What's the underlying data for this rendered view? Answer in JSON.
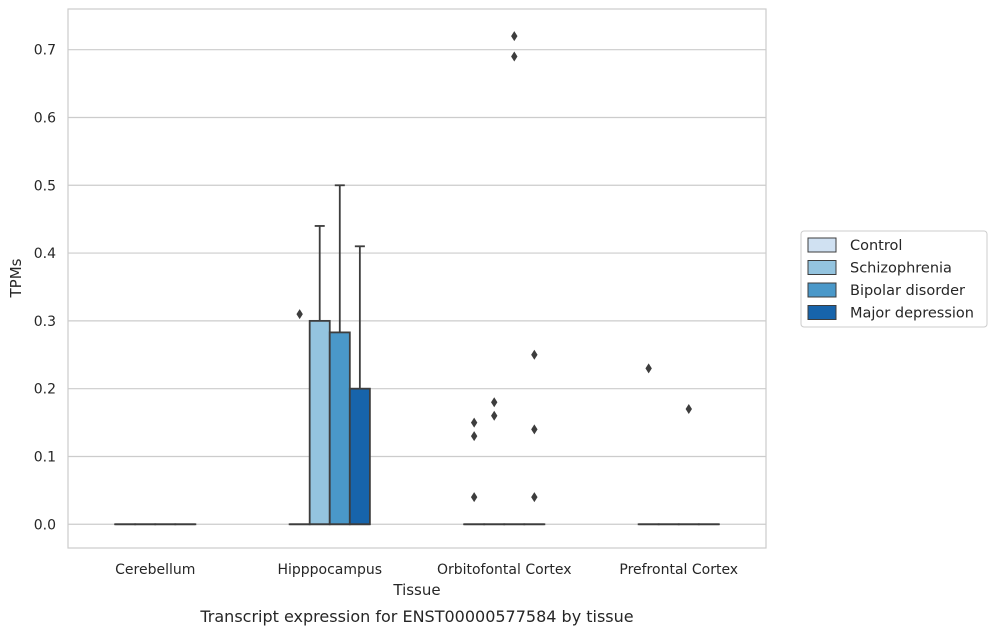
{
  "chart_data": {
    "type": "box",
    "caption": "Transcript expression for ENST00000577584 by tissue",
    "xlabel": "Tissue",
    "ylabel": "TPMs",
    "categories": [
      "Cerebellum",
      "Hipppocampus",
      "Orbitofontal Cortex",
      "Prefrontal Cortex"
    ],
    "ylim": [
      -0.035,
      0.76
    ],
    "yticks": [
      0.0,
      0.1,
      0.2,
      0.3,
      0.4,
      0.5,
      0.6,
      0.7
    ],
    "ytick_labels": [
      "0.0",
      "0.1",
      "0.2",
      "0.3",
      "0.4",
      "0.5",
      "0.6",
      "0.7"
    ],
    "grid": "horizontal",
    "legend_position": "right",
    "series": [
      {
        "name": "Control",
        "color": "#d0e1f2",
        "boxes": [
          {
            "q1": 0,
            "median": 0,
            "q3": 0,
            "whisker_low": 0,
            "whisker_high": 0,
            "outliers": []
          },
          {
            "q1": 0,
            "median": 0,
            "q3": 0,
            "whisker_low": 0,
            "whisker_high": 0,
            "outliers": [
              0.31
            ]
          },
          {
            "q1": 0,
            "median": 0,
            "q3": 0,
            "whisker_low": 0,
            "whisker_high": 0,
            "outliers": [
              0.04,
              0.13,
              0.15
            ]
          },
          {
            "q1": 0,
            "median": 0,
            "q3": 0,
            "whisker_low": 0,
            "whisker_high": 0,
            "outliers": [
              0.23
            ]
          }
        ]
      },
      {
        "name": "Schizophrenia",
        "color": "#94c4df",
        "boxes": [
          {
            "q1": 0,
            "median": 0,
            "q3": 0,
            "whisker_low": 0,
            "whisker_high": 0,
            "outliers": []
          },
          {
            "q1": 0,
            "median": 0,
            "q3": 0.3,
            "whisker_low": 0,
            "whisker_high": 0.44,
            "outliers": []
          },
          {
            "q1": 0,
            "median": 0,
            "q3": 0,
            "whisker_low": 0,
            "whisker_high": 0,
            "outliers": [
              0.16,
              0.18
            ]
          },
          {
            "q1": 0,
            "median": 0,
            "q3": 0,
            "whisker_low": 0,
            "whisker_high": 0,
            "outliers": []
          }
        ]
      },
      {
        "name": "Bipolar disorder",
        "color": "#4a98c9",
        "boxes": [
          {
            "q1": 0,
            "median": 0,
            "q3": 0,
            "whisker_low": 0,
            "whisker_high": 0,
            "outliers": []
          },
          {
            "q1": 0,
            "median": 0,
            "q3": 0.283,
            "whisker_low": 0,
            "whisker_high": 0.5,
            "outliers": []
          },
          {
            "q1": 0,
            "median": 0,
            "q3": 0,
            "whisker_low": 0,
            "whisker_high": 0,
            "outliers": [
              0.69,
              0.72
            ]
          },
          {
            "q1": 0,
            "median": 0,
            "q3": 0,
            "whisker_low": 0,
            "whisker_high": 0,
            "outliers": [
              0.17
            ]
          }
        ]
      },
      {
        "name": "Major depression",
        "color": "#1764ab",
        "boxes": [
          {
            "q1": 0,
            "median": 0,
            "q3": 0,
            "whisker_low": 0,
            "whisker_high": 0,
            "outliers": []
          },
          {
            "q1": 0,
            "median": 0,
            "q3": 0.2,
            "whisker_low": 0,
            "whisker_high": 0.41,
            "outliers": []
          },
          {
            "q1": 0,
            "median": 0,
            "q3": 0,
            "whisker_low": 0,
            "whisker_high": 0,
            "outliers": [
              0.04,
              0.14,
              0.25
            ]
          },
          {
            "q1": 0,
            "median": 0,
            "q3": 0,
            "whisker_low": 0,
            "whisker_high": 0,
            "outliers": []
          }
        ]
      }
    ],
    "colors": {
      "axis_frame": "#cccccc",
      "grid": "#cccccc",
      "box_edge": "#3d3d3d",
      "text": "#262626"
    }
  }
}
